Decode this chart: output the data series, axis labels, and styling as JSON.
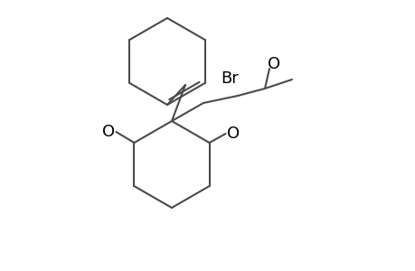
{
  "bg_color": "#ffffff",
  "line_color": "#4a4a4a",
  "line_width": 1.5,
  "font_size": 13,
  "font_color": "#000000",
  "label_Br": "Br",
  "label_O1": "O",
  "label_O2": "O",
  "label_O3": "O"
}
